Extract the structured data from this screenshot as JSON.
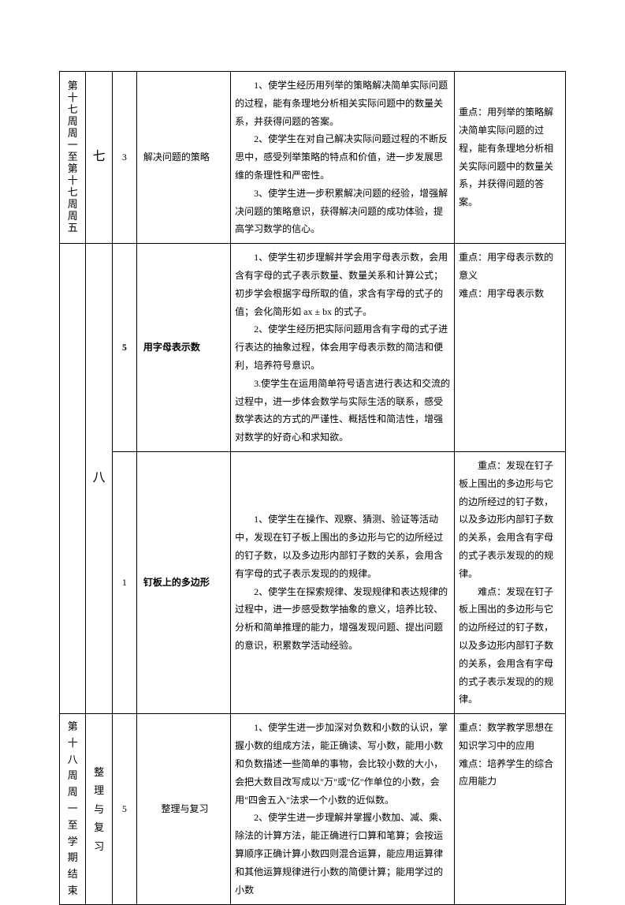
{
  "rows": [
    {
      "week": "第十七周周一至第十七周周五",
      "unit": "七",
      "hours": "3",
      "topic": "解决问题的策略",
      "goals": "　　1、使学生经历用列举的策略解决简单实际问题的过程，能有条理地分析相关实际问题中的数量关系，并获得问题的答案。\n　　2、使学生在对自己解决实际问题过程的不断反思中，感受列举策略的特点和价值，进一步发展思维的条理性和严密性。\n　　3、使学生进一步积累解决问题的经验，增强解决问题的策略意识，获得解决问题的成功体验，提高学习数学的信心。",
      "focus": "重点：用列举的策略解决简单实际问题的过程，能有条理地分析相关实际问题中的数量关系，并获得问题的答案。"
    },
    {
      "week": "",
      "unit": "八",
      "hours": "5",
      "hours_bold": true,
      "topic": "用字母表示数",
      "topic_bold": true,
      "goals": "　　1、使学生初步理解并学会用字母表示数，会用含有字母的式子表示数量、数量关系和计算公式；初步学会根据字母所取的值，求含有字母的式子的值；会化简形如 ax ± bx 的式子。\n　　2、使学生经历把实际问题用含有字母的式子进行表达的抽象过程，体会用字母表示数的简洁和便利，培养符号意识。\n　　3.使学生在运用简单符号语言进行表达和交流的过程中，进一步体会数学与实际生活的联系，感受数学表达的方式的严谨性、概括性和简洁性，增强对数学的好奇心和求知欲。",
      "focus": "重点：用字母表示数的意义\n难点：用字母表示数"
    },
    {
      "week": "",
      "unit": "",
      "hours": "1",
      "topic": "钉板上的多边形",
      "topic_bold": true,
      "goals": "　　1、使学生在操作、观察、猜测、验证等活动中，发现在钉子板上围出的多边形与它的边所经过的钉子数，以及多边形内部钉子数的关系，会用含有字母的式子表示发现的的规律。\n　　2、使学生在探索规律、发现规律和表达规律的过程中，进一步感受数学抽象的意义，培养比较、分析和简单推理的能力，增强发现问题、提出问题的意识，积累数学活动经验。",
      "focus": "　　重点：发现在钉子板上围出的多边形与它的边所经过的钉子数，以及多边形内部钉子数的关系，会用含有字母的式子表示发现的的规律。\n　　难点：发现在钉子板上围出的多边形与它的边所经过的钉子数，以及多边形内部钉子数的关系，会用含有字母的式子表示发现的的规律。"
    },
    {
      "week": "第十八周周一至学期结束",
      "unit": "整理与复习",
      "unit_vertical": true,
      "hours": "5",
      "topic": "整理与复习",
      "goals": "　　1、使学生进一步加深对负数和小数的认识，掌握小数的组成方法，能正确读、写小数，能用小数和负数描述一些简单的事物，会比较小数的大小，会把大数目改写成以\"万\"或\"亿\"作单位的小数，会用\"四舍五入\"法求一个小数的近似数。\n　　2、使学生进一步理解并掌握小数加、减、乘、除法的计算方法，能正确进行口算和笔算；会按运算顺序正确计算小数四则混合运算，能应用运算律和其他运算规律进行小数的简便计算；能用学过的小数",
      "focus": "重点：数学教学思想在知识学习中的应用\n难点：培养学生的综合应用能力"
    }
  ]
}
